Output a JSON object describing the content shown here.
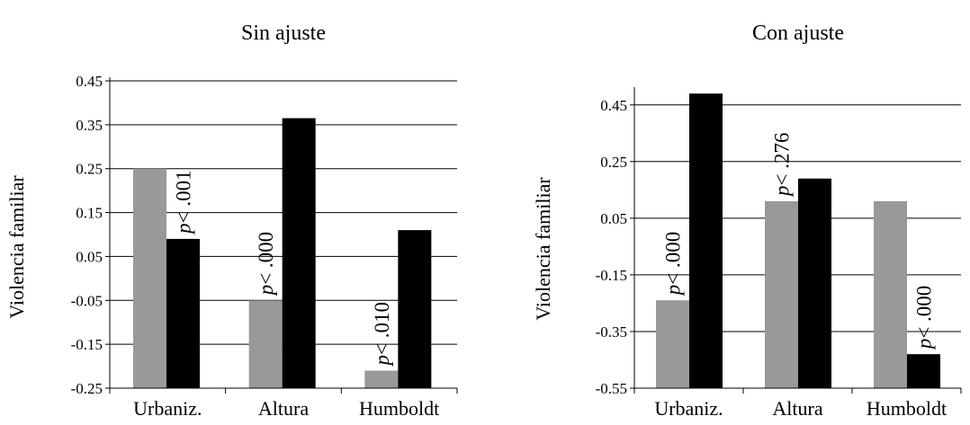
{
  "colors": {
    "gray": "#999999",
    "black": "#000000",
    "grid": "#000000"
  },
  "chart_data": [
    {
      "type": "bar",
      "title": "Sin ajuste",
      "ylabel": "Violencia familiar",
      "xlabel": "",
      "ylim": [
        -0.25,
        0.45
      ],
      "yticks": [
        0.45,
        0.35,
        0.25,
        0.15,
        0.05,
        -0.05,
        -0.15,
        -0.25
      ],
      "ytick_labels": [
        "0.45",
        "0.35",
        "0.25",
        "0.15",
        "0.05",
        "-0.05",
        "-0.15",
        "-0.25"
      ],
      "grid": true,
      "categories": [
        "Urbaniz.",
        "Altura",
        "Humboldt"
      ],
      "series": [
        {
          "values": [
            0.25,
            -0.05,
            -0.21
          ]
        },
        {
          "values": [
            0.09,
            0.365,
            0.11
          ]
        }
      ],
      "annotations": [
        {
          "category": "Urbaniz.",
          "series": 1,
          "italic": "p",
          "text": "< .001"
        },
        {
          "category": "Altura",
          "series": 0,
          "italic": "p",
          "text": "< .000"
        },
        {
          "category": "Humboldt",
          "series": 0,
          "italic": "p",
          "text": "< .010"
        }
      ]
    },
    {
      "type": "bar",
      "title": "Con ajuste",
      "ylabel": "Violencia familiar",
      "xlabel": "",
      "ylim": [
        -0.55,
        0.5
      ],
      "yticks": [
        0.45,
        0.25,
        0.05,
        -0.15,
        -0.35,
        -0.55
      ],
      "ytick_labels": [
        "0.45",
        "0.25",
        "0.05",
        "-0.15",
        "-0.35",
        "-0.55"
      ],
      "grid": true,
      "categories": [
        "Urbaniz.",
        "Altura",
        "Humboldt"
      ],
      "series": [
        {
          "values": [
            -0.24,
            0.11,
            0.11
          ]
        },
        {
          "values": [
            0.49,
            0.19,
            -0.43
          ]
        }
      ],
      "annotations": [
        {
          "category": "Urbaniz.",
          "series": 0,
          "italic": "p",
          "text": "< .000"
        },
        {
          "category": "Altura",
          "series": 0,
          "italic": "p",
          "text": "< .276"
        },
        {
          "category": "Humboldt",
          "series": 1,
          "italic": "p",
          "text": "< .000"
        }
      ]
    }
  ]
}
